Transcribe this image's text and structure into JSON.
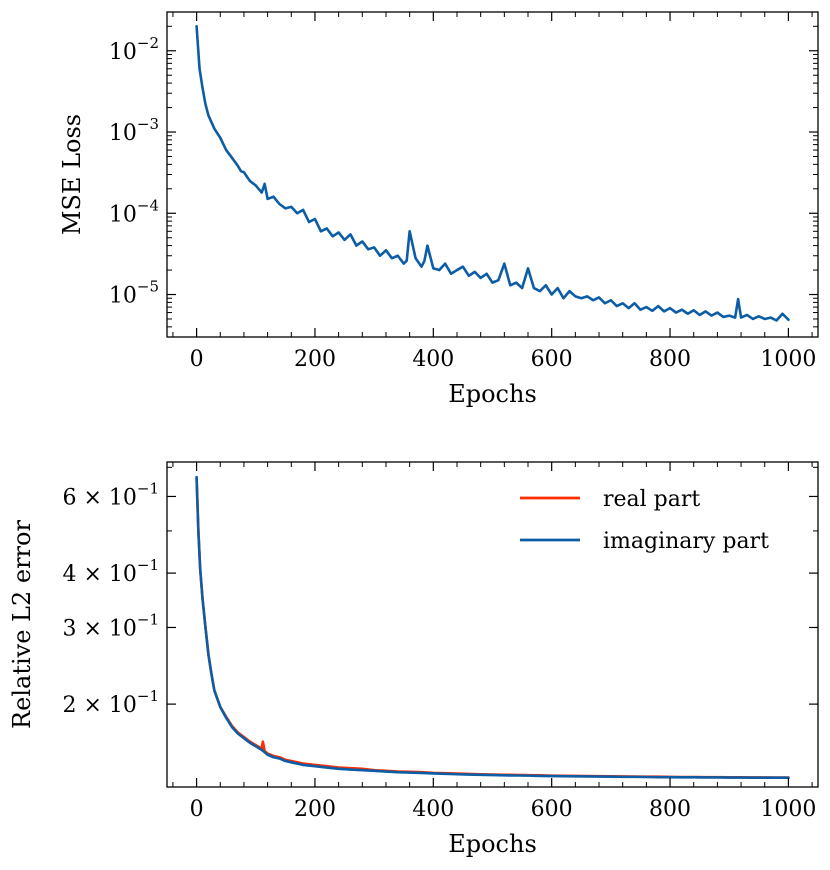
{
  "chart_data": [
    {
      "type": "line",
      "yscale": "log",
      "xlabel": "Epochs",
      "ylabel": "MSE Loss",
      "xlim": [
        -50,
        1050
      ],
      "ylim": [
        3e-06,
        0.03
      ],
      "xticks": [
        0,
        200,
        400,
        600,
        800,
        1000
      ],
      "xtick_labels": [
        "0",
        "200",
        "400",
        "600",
        "800",
        "1000"
      ],
      "yticks": [
        {
          "value": 0.01,
          "base": "10",
          "exp": "−2"
        },
        {
          "value": 0.001,
          "base": "10",
          "exp": "−3"
        },
        {
          "value": 0.0001,
          "base": "10",
          "exp": "−4"
        },
        {
          "value": 1e-05,
          "base": "10",
          "exp": "−5"
        }
      ],
      "series": [
        {
          "name": "MSE loss",
          "color": "#0C5DA5",
          "x": [
            0,
            5,
            10,
            15,
            20,
            30,
            40,
            50,
            60,
            70,
            75,
            80,
            90,
            100,
            110,
            115,
            120,
            130,
            140,
            150,
            160,
            170,
            180,
            190,
            200,
            210,
            220,
            230,
            240,
            250,
            260,
            270,
            280,
            290,
            300,
            310,
            320,
            330,
            340,
            350,
            355,
            360,
            370,
            380,
            385,
            390,
            400,
            410,
            420,
            430,
            440,
            450,
            460,
            470,
            480,
            490,
            500,
            510,
            520,
            530,
            540,
            550,
            560,
            570,
            580,
            590,
            600,
            610,
            620,
            630,
            640,
            650,
            660,
            670,
            680,
            690,
            700,
            710,
            720,
            730,
            740,
            750,
            760,
            770,
            780,
            790,
            800,
            810,
            820,
            830,
            840,
            850,
            860,
            870,
            880,
            890,
            900,
            910,
            915,
            920,
            930,
            940,
            950,
            960,
            970,
            980,
            990,
            1000
          ],
          "y": [
            0.02,
            0.006,
            0.0035,
            0.0022,
            0.0016,
            0.0011,
            0.00085,
            0.0006,
            0.00048,
            0.00038,
            0.00033,
            0.00032,
            0.00025,
            0.00022,
            0.00018,
            0.00023,
            0.00015,
            0.00016,
            0.00013,
            0.000115,
            0.00012,
            0.0001,
            0.00011,
            7.8e-05,
            8.5e-05,
            6e-05,
            6.5e-05,
            5.2e-05,
            5.8e-05,
            4.7e-05,
            5.5e-05,
            4e-05,
            4.5e-05,
            3.6e-05,
            3.8e-05,
            3e-05,
            3.5e-05,
            2.8e-05,
            3e-05,
            2.4e-05,
            2.6e-05,
            6e-05,
            2.8e-05,
            2.2e-05,
            2.6e-05,
            4e-05,
            2.1e-05,
            2e-05,
            2.4e-05,
            1.8e-05,
            2e-05,
            2.2e-05,
            1.7e-05,
            1.9e-05,
            1.6e-05,
            1.8e-05,
            1.4e-05,
            1.5e-05,
            2.4e-05,
            1.3e-05,
            1.4e-05,
            1.2e-05,
            2.1e-05,
            1.2e-05,
            1.1e-05,
            1.3e-05,
            1e-05,
            1.2e-05,
            9e-06,
            1.1e-05,
            9.5e-06,
            9e-06,
            9.5e-06,
            8.5e-06,
            9.2e-06,
            7.8e-06,
            8.5e-06,
            7.2e-06,
            7.8e-06,
            6.8e-06,
            7.8e-06,
            6.5e-06,
            7e-06,
            6.3e-06,
            7.2e-06,
            6.2e-06,
            6.8e-06,
            6e-06,
            6.5e-06,
            5.8e-06,
            6.4e-06,
            5.6e-06,
            6.2e-06,
            5.5e-06,
            6e-06,
            5.3e-06,
            5.5e-06,
            5.2e-06,
            8.8e-06,
            5.2e-06,
            5.6e-06,
            5e-06,
            5.4e-06,
            5e-06,
            5.2e-06,
            4.8e-06,
            5.8e-06,
            4.9e-06
          ]
        }
      ]
    },
    {
      "type": "line",
      "yscale": "log",
      "xlabel": "Epochs",
      "ylabel": "Relative L2 error",
      "xlim": [
        -50,
        1050
      ],
      "ylim": [
        0.129,
        0.72
      ],
      "xticks": [
        0,
        200,
        400,
        600,
        800,
        1000
      ],
      "xtick_labels": [
        "0",
        "200",
        "400",
        "600",
        "800",
        "1000"
      ],
      "yticks": [
        {
          "value": 0.6,
          "label": "6 × 10",
          "exp": "−1"
        },
        {
          "value": 0.4,
          "label": "4 × 10",
          "exp": "−1"
        },
        {
          "value": 0.3,
          "label": "3 × 10",
          "exp": "−1"
        },
        {
          "value": 0.2,
          "label": "2 × 10",
          "exp": "−1"
        }
      ],
      "legend": {
        "placement": "top-right",
        "entries": [
          "real part",
          "imaginary part"
        ]
      },
      "series": [
        {
          "name": "real part",
          "color": "#FF2C00",
          "x": [
            0,
            3,
            6,
            10,
            15,
            20,
            25,
            30,
            40,
            50,
            60,
            70,
            80,
            90,
            100,
            110,
            112,
            115,
            120,
            130,
            140,
            150,
            160,
            170,
            180,
            200,
            220,
            240,
            260,
            280,
            300,
            320,
            340,
            360,
            380,
            400,
            420,
            440,
            460,
            480,
            500,
            520,
            540,
            560,
            580,
            600,
            620,
            640,
            660,
            680,
            700,
            720,
            740,
            760,
            780,
            800,
            820,
            840,
            860,
            880,
            900,
            920,
            940,
            960,
            980,
            1000
          ],
          "y": [
            0.66,
            0.5,
            0.41,
            0.35,
            0.3,
            0.26,
            0.235,
            0.215,
            0.197,
            0.187,
            0.178,
            0.172,
            0.168,
            0.164,
            0.161,
            0.158,
            0.164,
            0.156,
            0.154,
            0.152,
            0.151,
            0.149,
            0.148,
            0.147,
            0.146,
            0.145,
            0.144,
            0.143,
            0.1425,
            0.142,
            0.141,
            0.1405,
            0.14,
            0.1398,
            0.1395,
            0.139,
            0.1388,
            0.1385,
            0.1382,
            0.138,
            0.1378,
            0.1376,
            0.1375,
            0.1373,
            0.1372,
            0.137,
            0.1369,
            0.1368,
            0.1367,
            0.1366,
            0.1365,
            0.1364,
            0.1363,
            0.1362,
            0.1362,
            0.1361,
            0.136,
            0.136,
            0.1359,
            0.1359,
            0.1358,
            0.1358,
            0.1357,
            0.1357,
            0.1356,
            0.1356
          ]
        },
        {
          "name": "imaginary part",
          "color": "#0C5DA5",
          "x": [
            0,
            3,
            6,
            10,
            15,
            20,
            25,
            30,
            40,
            50,
            60,
            70,
            80,
            90,
            100,
            110,
            115,
            120,
            130,
            140,
            150,
            160,
            170,
            180,
            200,
            220,
            240,
            260,
            280,
            300,
            320,
            340,
            360,
            380,
            400,
            420,
            440,
            460,
            480,
            500,
            520,
            540,
            560,
            580,
            600,
            620,
            640,
            660,
            680,
            700,
            720,
            740,
            760,
            780,
            800,
            820,
            840,
            860,
            880,
            900,
            920,
            940,
            960,
            980,
            1000
          ],
          "y": [
            0.665,
            0.5,
            0.41,
            0.35,
            0.3,
            0.26,
            0.235,
            0.215,
            0.197,
            0.186,
            0.177,
            0.171,
            0.167,
            0.163,
            0.16,
            0.157,
            0.155,
            0.153,
            0.151,
            0.15,
            0.148,
            0.147,
            0.146,
            0.145,
            0.144,
            0.143,
            0.142,
            0.1415,
            0.141,
            0.1405,
            0.14,
            0.1395,
            0.1392,
            0.139,
            0.1386,
            0.1383,
            0.138,
            0.1378,
            0.1376,
            0.1374,
            0.1372,
            0.1371,
            0.137,
            0.1368,
            0.1367,
            0.1366,
            0.1365,
            0.1364,
            0.1363,
            0.1362,
            0.1361,
            0.1361,
            0.136,
            0.1359,
            0.1359,
            0.1358,
            0.1358,
            0.1357,
            0.1357,
            0.1356,
            0.1356,
            0.1355,
            0.1355,
            0.1355,
            0.1355
          ]
        }
      ]
    }
  ]
}
